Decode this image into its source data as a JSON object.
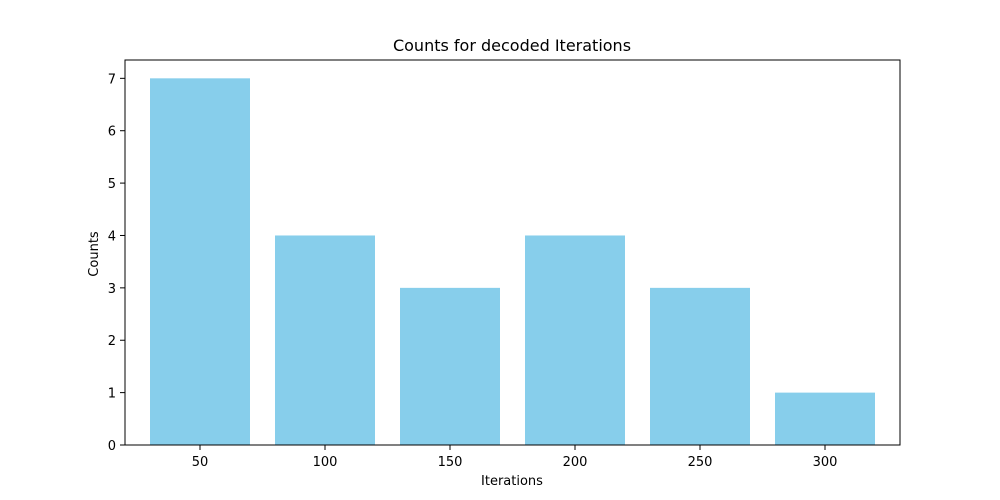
{
  "chart_data": {
    "type": "bar",
    "title": "Counts for decoded Iterations",
    "xlabel": "Iterations",
    "ylabel": "Counts",
    "categories": [
      "50",
      "100",
      "150",
      "200",
      "250",
      "300"
    ],
    "values": [
      7,
      4,
      3,
      4,
      3,
      1
    ],
    "ylim": [
      0,
      7.35
    ],
    "yticks": [
      0,
      1,
      2,
      3,
      4,
      5,
      6,
      7
    ],
    "bar_color": "#87ceeb",
    "grid": false,
    "legend": "none"
  }
}
